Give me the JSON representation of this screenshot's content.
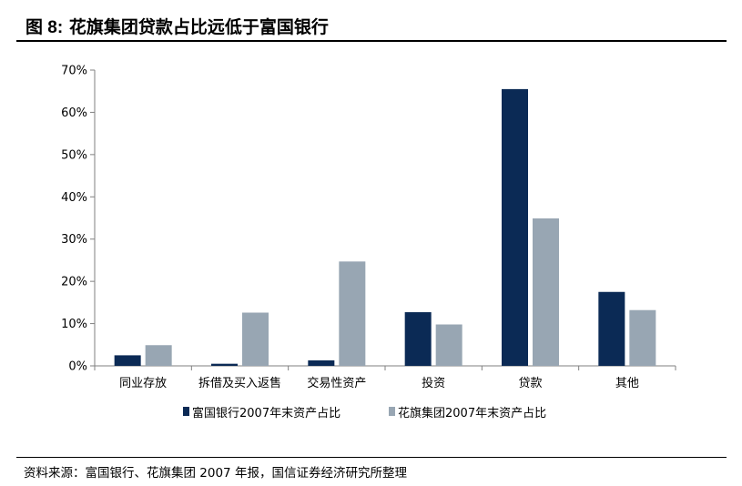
{
  "figure": {
    "label": "图 8:",
    "title": "花旗集团贷款占比远低于富国银行"
  },
  "source_note": "资料来源：富国银行、花旗集团 2007 年报，国信证券经济研究所整理",
  "colors": {
    "series1": "#0b2a55",
    "series2": "#98a6b3"
  },
  "chart_data": {
    "type": "bar",
    "title": "",
    "xlabel": "",
    "ylabel": "",
    "ylim": [
      0,
      70
    ],
    "yticks": [
      "0%",
      "10%",
      "20%",
      "30%",
      "40%",
      "50%",
      "60%",
      "70%"
    ],
    "categories": [
      "同业存放",
      "拆借及买入返售",
      "交易性资产",
      "投资",
      "贷款",
      "其他"
    ],
    "series": [
      {
        "name": "富国银行2007年末资产占比",
        "values": [
          2.5,
          0.5,
          1.3,
          12.7,
          65.5,
          17.5
        ]
      },
      {
        "name": "花旗集团2007年末资产占比",
        "values": [
          4.9,
          12.6,
          24.7,
          9.8,
          34.9,
          13.2
        ]
      }
    ],
    "grid": false,
    "legend_position": "bottom"
  }
}
